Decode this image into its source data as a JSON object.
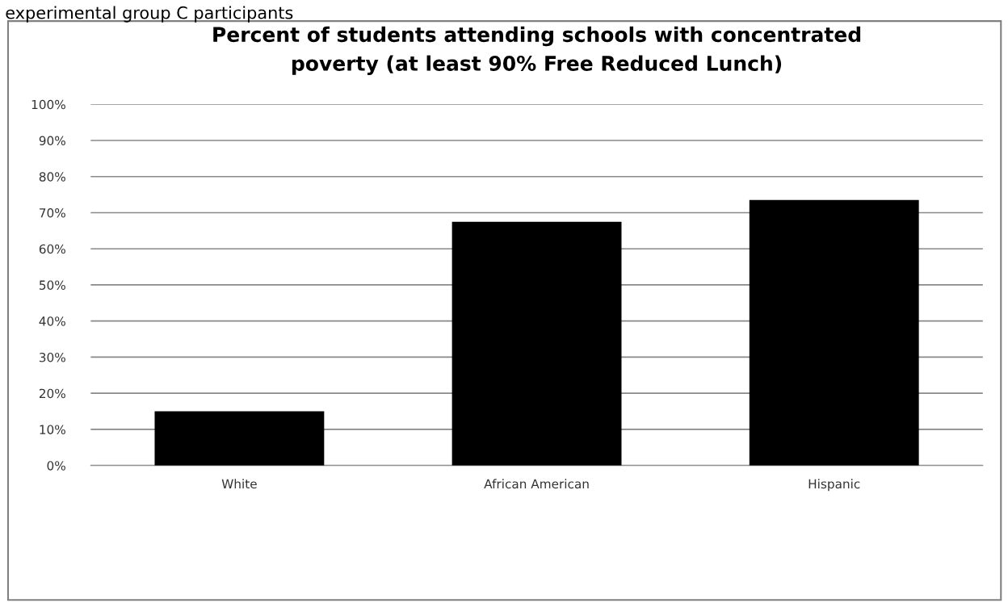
{
  "chart_data": {
    "type": "bar",
    "title": "Percent of students attending schools with concentrated\npoverty (at least 90% Free Reduced Lunch)",
    "categories": [
      "White",
      "African American",
      "Hispanic"
    ],
    "values": [
      15,
      67.5,
      73.5
    ],
    "color": "#000000",
    "ylim": [
      0,
      100
    ],
    "yticks": [
      {
        "value": 0,
        "label": "0%"
      },
      {
        "value": 10,
        "label": "10%"
      },
      {
        "value": 20,
        "label": "20%"
      },
      {
        "value": 30,
        "label": "30%"
      },
      {
        "value": 40,
        "label": "40%"
      },
      {
        "value": 50,
        "label": "50%"
      },
      {
        "value": 60,
        "label": "60%"
      },
      {
        "value": 70,
        "label": "70%"
      },
      {
        "value": 80,
        "label": "80%"
      },
      {
        "value": 90,
        "label": "90%"
      },
      {
        "value": 100,
        "label": "100%"
      }
    ],
    "grid": "y",
    "legend": false,
    "annotations": [
      "experimental group C participants"
    ]
  }
}
